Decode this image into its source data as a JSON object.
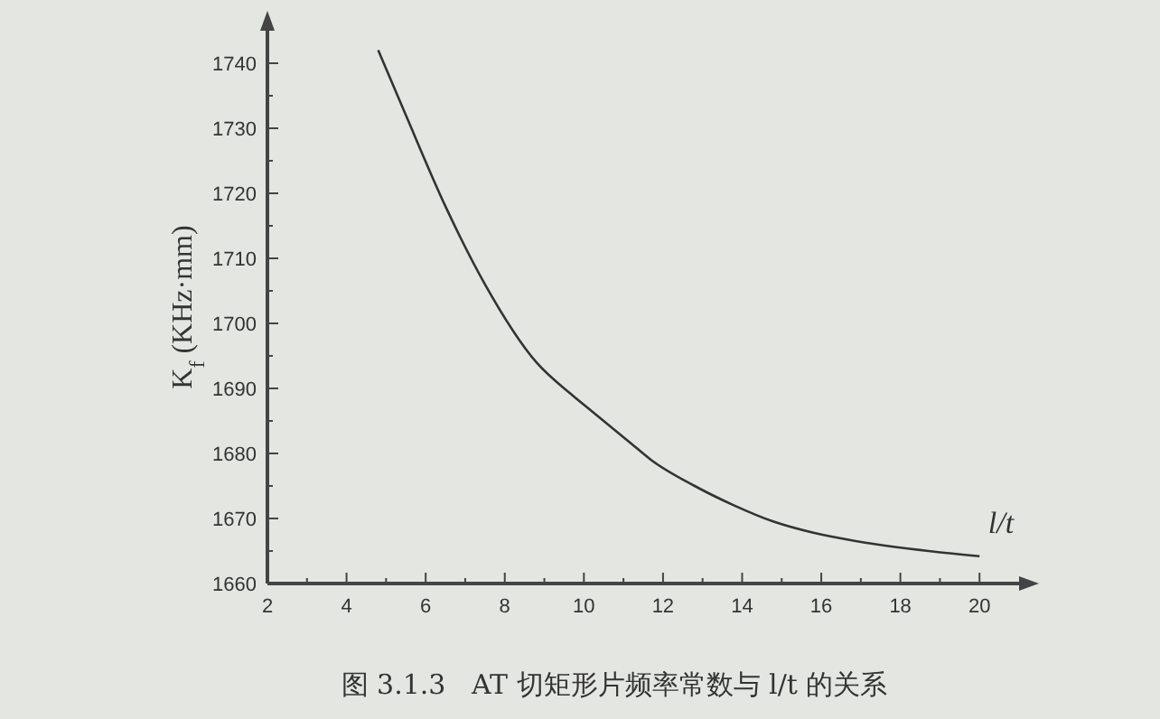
{
  "chart_data": {
    "type": "line",
    "xlabel": "l/t",
    "ylabel": "K$_{f}$ (KHz·mm)",
    "annotations": [
      "图 3.1.3   AT 切矩形片频率常数与 l/t 的关系"
    ],
    "series": [
      {
        "color": "#333333",
        "x": [
          4.8,
          5.5,
          6.5,
          7.5,
          8.8,
          9.7,
          10.2,
          11.2,
          11.7,
          12.8,
          13.8,
          14.8,
          15.8,
          16.9,
          17.9,
          19,
          20
        ],
        "values": [
          1742,
          1732,
          1718,
          1706,
          1694,
          1689,
          1686.5,
          1681.5,
          1679,
          1675,
          1672,
          1669.5,
          1667.8,
          1666.5,
          1665.6,
          1664.8,
          1664.2
        ]
      }
    ],
    "xlim": [
      2,
      21
    ],
    "ylim": [
      1660,
      1745
    ],
    "xticks": [
      2,
      {
        "value": 3,
        "label": null
      },
      4,
      {
        "value": 5,
        "label": null
      },
      6,
      {
        "value": 7,
        "label": null
      },
      8,
      {
        "value": 9,
        "label": null
      },
      10,
      {
        "value": 11,
        "label": null
      },
      12,
      {
        "value": 13,
        "label": null
      },
      14,
      {
        "value": 15,
        "label": null
      },
      16,
      {
        "value": 17,
        "label": null
      },
      18,
      {
        "value": 19,
        "label": null
      },
      20
    ],
    "yticks": [
      1660,
      {
        "value": 1665,
        "label": null
      },
      1670,
      {
        "value": 1675,
        "label": null
      },
      1680,
      {
        "value": 1685,
        "label": null
      },
      1690,
      {
        "value": 1695,
        "label": null
      },
      1700,
      {
        "value": 1705,
        "label": null
      },
      1710,
      {
        "value": 1715,
        "label": null
      },
      1720,
      {
        "value": 1725,
        "label": null
      },
      1730,
      {
        "value": 1735,
        "label": null
      },
      1740
    ],
    "grid": false,
    "marker": "none",
    "line_style": "solid"
  }
}
